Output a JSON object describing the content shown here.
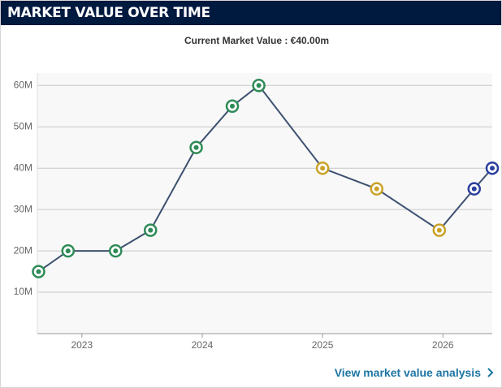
{
  "header": {
    "title": "MARKET VALUE OVER TIME"
  },
  "chart_data": {
    "type": "line",
    "subtitle": "Current Market Value : €40.00m",
    "x": [
      2022.64,
      2022.885,
      2023.28,
      2023.57,
      2023.95,
      2024.25,
      2024.47,
      2025.0,
      2025.45,
      2025.97,
      2026.26,
      2026.41
    ],
    "series": [
      {
        "color": "#3d5170",
        "values": [
          15,
          20,
          20,
          25,
          45,
          55,
          60,
          40,
          35,
          25,
          35,
          40
        ]
      }
    ],
    "point_colors": [
      "#2e8b57",
      "#2e8b57",
      "#2e8b57",
      "#2e8b57",
      "#2e8b57",
      "#2e8b57",
      "#2e8b57",
      "#c9a227",
      "#c9a227",
      "#c9a227",
      "#2b3f9e",
      "#2b3f9e"
    ],
    "xlim": [
      2022.63,
      2026.41
    ],
    "xticks": [
      2023,
      2024,
      2025,
      2026
    ],
    "ylim": [
      0,
      63
    ],
    "yticks": [
      {
        "value": 10,
        "label": "10M"
      },
      {
        "value": 20,
        "label": "20M"
      },
      {
        "value": 30,
        "label": "30M"
      },
      {
        "value": 40,
        "label": "40M"
      },
      {
        "value": 50,
        "label": "50M"
      },
      {
        "value": 60,
        "label": "60M"
      }
    ],
    "grid": true
  },
  "link": {
    "text": "View market value analysis"
  }
}
